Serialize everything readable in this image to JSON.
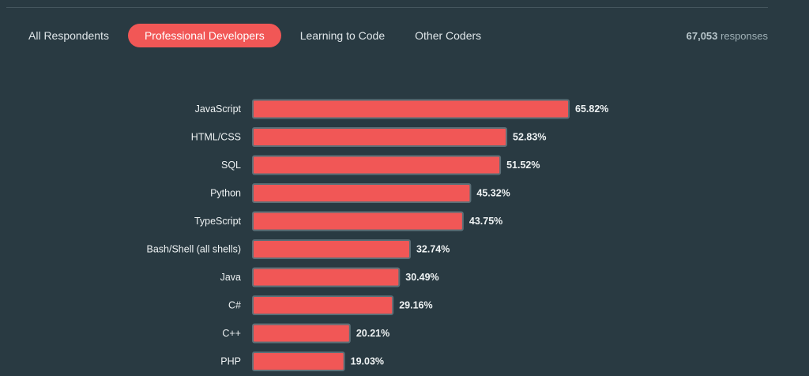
{
  "tabs": [
    {
      "label": "All Respondents",
      "active": false
    },
    {
      "label": "Professional Developers",
      "active": true
    },
    {
      "label": "Learning to Code",
      "active": false
    },
    {
      "label": "Other Coders",
      "active": false
    }
  ],
  "responses": {
    "count": "67,053",
    "label": "responses"
  },
  "colors": {
    "background": "#293a42",
    "bar": "#f15756",
    "bar_border": "#5c6f77",
    "active_tab": "#f15756"
  },
  "chart_data": {
    "type": "bar",
    "orientation": "horizontal",
    "categories": [
      "JavaScript",
      "HTML/CSS",
      "SQL",
      "Python",
      "TypeScript",
      "Bash/Shell (all shells)",
      "Java",
      "C#",
      "C++",
      "PHP"
    ],
    "values": [
      65.82,
      52.83,
      51.52,
      45.32,
      43.75,
      32.74,
      30.49,
      29.16,
      20.21,
      19.03
    ],
    "value_labels": [
      "65.82%",
      "52.83%",
      "51.52%",
      "45.32%",
      "43.75%",
      "32.74%",
      "30.49%",
      "29.16%",
      "20.21%",
      "19.03%"
    ],
    "unit": "%",
    "grid": false
  }
}
